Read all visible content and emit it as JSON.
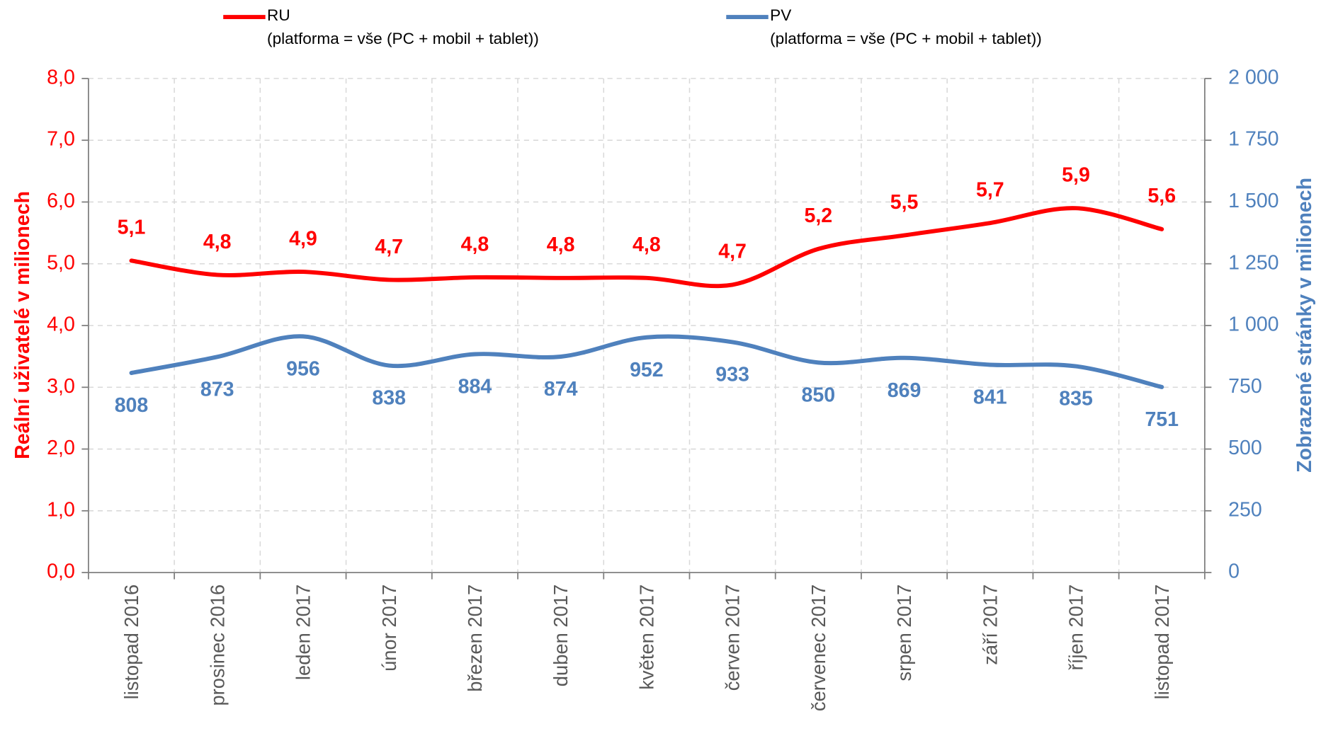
{
  "chart_data": {
    "type": "line",
    "categories": [
      "listopad 2016",
      "prosinec 2016",
      "leden 2017",
      "únor 2017",
      "březen 2017",
      "duben 2017",
      "květen 2017",
      "červen 2017",
      "červenec 2017",
      "srpen 2017",
      "září 2017",
      "říjen 2017",
      "listopad 2017"
    ],
    "series": [
      {
        "name": "RU\n(platforma = vše (PC + mobil + tablet))",
        "color": "#ff0000",
        "values": [
          5.05,
          4.82,
          4.87,
          4.74,
          4.78,
          4.77,
          4.77,
          4.66,
          5.24,
          5.46,
          5.66,
          5.9,
          5.56
        ],
        "value_labels": [
          "5,1",
          "4,8",
          "4,9",
          "4,7",
          "4,8",
          "4,8",
          "4,8",
          "4,7",
          "5,2",
          "5,5",
          "5,7",
          "5,9",
          "5,6"
        ]
      },
      {
        "name": "PV\n(platforma = vše (PC + mobil + tablet))",
        "color": "#4f81bd",
        "axis": "y2",
        "values": [
          808,
          873,
          956,
          838,
          884,
          874,
          952,
          933,
          850,
          869,
          841,
          835,
          751
        ]
      }
    ],
    "y_label": "Reální uživatelé v milionech",
    "y2_label": "Zobrazené stránky v milionech",
    "ylim": [
      0,
      8
    ],
    "yticks": [
      {
        "value": 0,
        "label": "0,0"
      },
      {
        "value": 1,
        "label": "1,0"
      },
      {
        "value": 2,
        "label": "2,0"
      },
      {
        "value": 3,
        "label": "3,0"
      },
      {
        "value": 4,
        "label": "4,0"
      },
      {
        "value": 5,
        "label": "5,0"
      },
      {
        "value": 6,
        "label": "6,0"
      },
      {
        "value": 7,
        "label": "7,0"
      },
      {
        "value": 8,
        "label": "8,0"
      }
    ],
    "y2lim": [
      0,
      2000
    ],
    "y2ticks": [
      0,
      250,
      500,
      750,
      {
        "value": 1000,
        "label": "1 000"
      },
      {
        "value": 1250,
        "label": "1 250"
      },
      {
        "value": 1500,
        "label": "1 500"
      },
      {
        "value": 1750,
        "label": "1 750"
      },
      {
        "value": 2000,
        "label": "2 000"
      }
    ],
    "grid": true,
    "smooth": true,
    "legend": "top"
  }
}
